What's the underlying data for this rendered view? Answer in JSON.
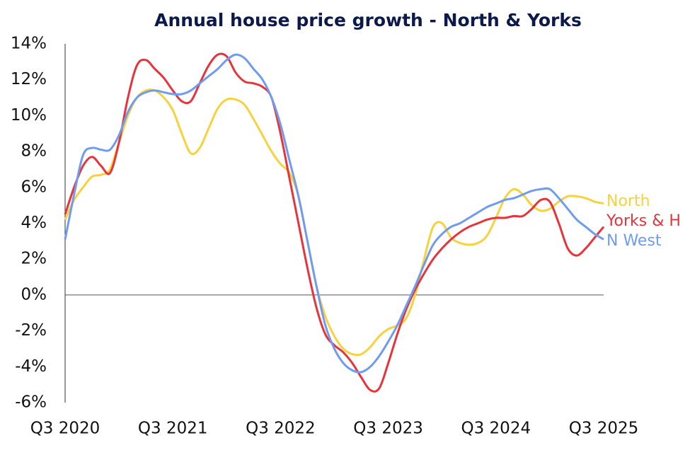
{
  "chart_data": {
    "type": "line",
    "title": "Annual house price growth - North & Yorks",
    "categories": [
      "Q3 2020",
      null,
      null,
      null,
      null,
      null,
      null,
      null,
      null,
      null,
      null,
      null,
      "Q3 2021",
      null,
      null,
      null,
      null,
      null,
      null,
      null,
      null,
      null,
      null,
      null,
      "Q3 2022",
      null,
      null,
      null,
      null,
      null,
      null,
      null,
      null,
      null,
      null,
      null,
      "Q3 2023",
      null,
      null,
      null,
      null,
      null,
      null,
      null,
      null,
      null,
      null,
      null,
      "Q3 2024",
      null,
      null,
      null,
      null,
      null,
      null,
      null,
      null,
      null,
      null,
      null,
      "Q3 2025"
    ],
    "series": [
      {
        "name": "North",
        "color": "#f7d23e",
        "values": [
          4.2,
          5.3,
          6.0,
          6.6,
          6.7,
          7.0,
          8.5,
          10.0,
          11.0,
          11.4,
          11.4,
          11.0,
          10.3,
          9.0,
          7.9,
          8.2,
          9.3,
          10.4,
          10.9,
          10.9,
          10.6,
          9.8,
          8.9,
          8.0,
          7.3,
          6.8,
          5.5,
          3.0,
          0.5,
          -1.2,
          -2.3,
          -3.0,
          -3.3,
          -3.3,
          -2.9,
          -2.3,
          -1.9,
          -1.7,
          -1.3,
          0,
          2.0,
          3.8,
          4.0,
          3.2,
          2.9,
          2.8,
          2.9,
          3.3,
          4.3,
          5.4,
          5.9,
          5.6,
          5.0,
          4.7,
          4.8,
          5.2,
          5.5,
          5.5,
          5.4,
          5.2,
          5.1
        ]
      },
      {
        "name": "Yorks & H",
        "color": "#e8333b",
        "values": [
          4.5,
          6.0,
          7.2,
          7.7,
          7.2,
          6.8,
          8.5,
          11.0,
          12.8,
          13.1,
          12.6,
          12.1,
          11.4,
          10.8,
          10.8,
          11.8,
          12.8,
          13.4,
          13.3,
          12.4,
          11.9,
          11.8,
          11.6,
          11.0,
          9.0,
          6.5,
          4.0,
          1.5,
          -0.7,
          -2.2,
          -2.8,
          -3.2,
          -3.8,
          -4.6,
          -5.3,
          -5.2,
          -3.8,
          -2.2,
          -0.8,
          0.3,
          1.2,
          2.0,
          2.6,
          3.1,
          3.5,
          3.8,
          4.0,
          4.2,
          4.3,
          4.3,
          4.4,
          4.4,
          4.8,
          5.3,
          5.2,
          4.0,
          2.6,
          2.2,
          2.6,
          3.2,
          3.8
        ]
      },
      {
        "name": "N West",
        "color": "#6f9cf0",
        "values": [
          3.1,
          5.6,
          7.8,
          8.2,
          8.1,
          8.1,
          8.9,
          10.2,
          11.0,
          11.3,
          11.4,
          11.3,
          11.2,
          11.2,
          11.4,
          11.8,
          12.2,
          12.6,
          13.1,
          13.4,
          13.2,
          12.6,
          12.0,
          11.0,
          9.5,
          7.5,
          5.5,
          3.0,
          0.5,
          -1.7,
          -3.0,
          -3.8,
          -4.2,
          -4.3,
          -4.0,
          -3.4,
          -2.6,
          -1.7,
          -0.6,
          0.5,
          1.7,
          2.8,
          3.4,
          3.8,
          4.0,
          4.3,
          4.6,
          4.9,
          5.1,
          5.3,
          5.4,
          5.6,
          5.8,
          5.9,
          5.9,
          5.4,
          4.8,
          4.2,
          3.8,
          3.4,
          3.1
        ]
      }
    ],
    "ylim": [
      -6,
      14
    ],
    "yticks": [
      {
        "value": -6,
        "label": "-6%"
      },
      {
        "value": -4,
        "label": "-4%"
      },
      {
        "value": -2,
        "label": "-2%"
      },
      {
        "value": 0,
        "label": "0%"
      },
      {
        "value": 2,
        "label": "2%"
      },
      {
        "value": 4,
        "label": "4%"
      },
      {
        "value": 6,
        "label": "6%"
      },
      {
        "value": 8,
        "label": "8%"
      },
      {
        "value": 10,
        "label": "10%"
      },
      {
        "value": 12,
        "label": "12%"
      },
      {
        "value": 14,
        "label": "14%"
      }
    ]
  }
}
